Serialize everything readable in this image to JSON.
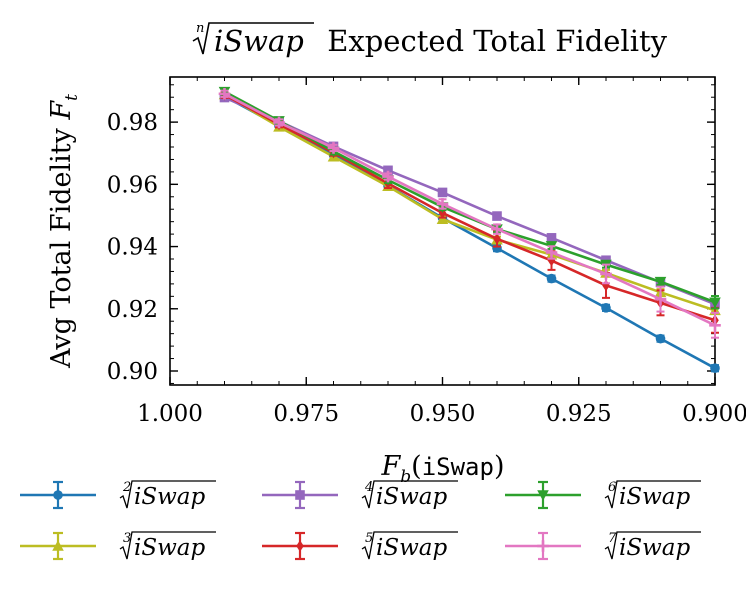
{
  "chart_data": {
    "type": "line",
    "title_prefix": "n",
    "title_radicand": "iSwap",
    "title_rest": " Expected Total Fidelity",
    "xlabel_var": "F",
    "xlabel_sub": "b",
    "xlabel_arg": "iSwap",
    "ylabel_text": "Avg Total Fidelity ",
    "ylabel_var": "F",
    "ylabel_sub": "t",
    "xlim": [
      1.0,
      0.9
    ],
    "ylim": [
      0.8955,
      0.9945
    ],
    "xticks": [
      1.0,
      0.975,
      0.95,
      0.925,
      0.9
    ],
    "xtick_labels": [
      "1.000",
      "0.975",
      "0.950",
      "0.925",
      "0.900"
    ],
    "yticks": [
      0.9,
      0.92,
      0.94,
      0.96,
      0.98
    ],
    "ytick_labels": [
      "0.90",
      "0.92",
      "0.94",
      "0.96",
      "0.98"
    ],
    "x": [
      0.99,
      0.98,
      0.97,
      0.96,
      0.95,
      0.94,
      0.93,
      0.92,
      0.91,
      0.9
    ],
    "series": [
      {
        "name": "iSwap",
        "root": "2",
        "color": "#1f77b4",
        "marker": "circle",
        "values": [
          0.9883,
          0.9788,
          0.9695,
          0.9595,
          0.9492,
          0.9395,
          0.9297,
          0.9203,
          0.9104,
          0.9009
        ],
        "errors": [
          0.001,
          0.001,
          0.001,
          0.001,
          0.001,
          0.001,
          0.001,
          0.001,
          0.001,
          0.001
        ]
      },
      {
        "name": "iSwap",
        "root": "3",
        "color": "#bcbd22",
        "marker": "triangle-up",
        "values": [
          0.9889,
          0.9785,
          0.9689,
          0.9594,
          0.9488,
          0.9422,
          0.9374,
          0.9315,
          0.9253,
          0.9195
        ],
        "errors": [
          0.001,
          0.001,
          0.001,
          0.001,
          0.001,
          0.001,
          0.001,
          0.001,
          0.001,
          0.001
        ]
      },
      {
        "name": "iSwap",
        "root": "4",
        "color": "#9467bd",
        "marker": "square",
        "values": [
          0.9879,
          0.9803,
          0.9722,
          0.9645,
          0.9574,
          0.9498,
          0.9428,
          0.9356,
          0.9285,
          0.9215
        ],
        "errors": [
          0.001,
          0.001,
          0.001,
          0.001,
          0.001,
          0.001,
          0.001,
          0.001,
          0.001,
          0.001
        ]
      },
      {
        "name": "iSwap",
        "root": "5",
        "color": "#d62728",
        "marker": "diamond",
        "values": [
          0.9888,
          0.9793,
          0.9702,
          0.9603,
          0.9508,
          0.9425,
          0.9355,
          0.9275,
          0.9219,
          0.9163
        ],
        "errors": [
          0.001,
          0.001,
          0.001,
          0.0015,
          0.0015,
          0.0025,
          0.003,
          0.004,
          0.004,
          0.004
        ]
      },
      {
        "name": "iSwap",
        "root": "6",
        "color": "#2ca02c",
        "marker": "triangle-down",
        "values": [
          0.9898,
          0.9804,
          0.9706,
          0.9614,
          0.9527,
          0.9456,
          0.9402,
          0.9342,
          0.9287,
          0.9221
        ],
        "errors": [
          0.001,
          0.001,
          0.001,
          0.001,
          0.001,
          0.001,
          0.001,
          0.001,
          0.001,
          0.002
        ]
      },
      {
        "name": "iSwap",
        "root": "7",
        "color": "#e377c2",
        "marker": "plus",
        "values": [
          0.9891,
          0.9799,
          0.9717,
          0.9625,
          0.9537,
          0.9456,
          0.9381,
          0.9312,
          0.9231,
          0.9147
        ],
        "errors": [
          0.001,
          0.001,
          0.001,
          0.001,
          0.0015,
          0.0015,
          0.002,
          0.003,
          0.004,
          0.004
        ]
      }
    ],
    "legend_position": "bottom"
  }
}
